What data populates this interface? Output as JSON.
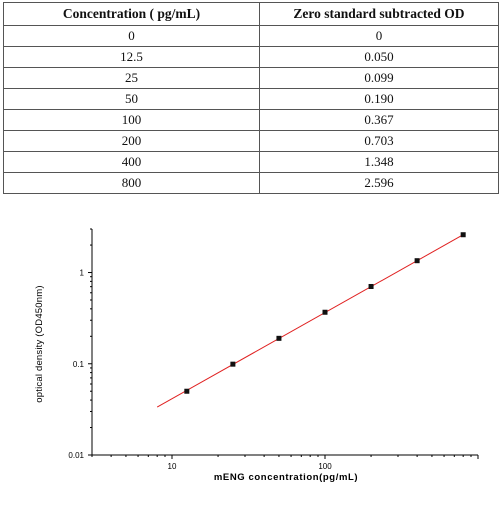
{
  "table": {
    "headers": [
      "Concentration ( pg/mL)",
      "Zero standard subtracted OD"
    ],
    "rows": [
      [
        "0",
        "0"
      ],
      [
        "12.5",
        "0.050"
      ],
      [
        "25",
        "0.099"
      ],
      [
        "50",
        "0.190"
      ],
      [
        "100",
        "0.367"
      ],
      [
        "200",
        "0.703"
      ],
      [
        "400",
        "1.348"
      ],
      [
        "800",
        "2.596"
      ]
    ]
  },
  "chart_data": {
    "type": "scatter",
    "title": "",
    "xlabel": "mENG  concentration(pg/mL)",
    "ylabel": "optical density (OD450nm)",
    "x_scale": "log",
    "y_scale": "log",
    "xlim": [
      3,
      1000
    ],
    "ylim": [
      0.01,
      3
    ],
    "x_ticks": [
      10,
      100
    ],
    "x_tick_labels": [
      "10",
      "100"
    ],
    "y_ticks": [
      0.01,
      0.1,
      1
    ],
    "y_tick_labels": [
      "0.01",
      "0.1",
      "1"
    ],
    "grid": false,
    "legend": "none",
    "series": [
      {
        "x": [
          12.5,
          25,
          50,
          100,
          200,
          400,
          800
        ],
        "y": [
          0.05,
          0.099,
          0.19,
          0.367,
          0.703,
          1.348,
          2.596
        ],
        "marker": "square",
        "color": "#111111"
      }
    ],
    "fit_line": {
      "type": "power",
      "x_range": [
        8,
        800
      ],
      "points": [
        [
          8,
          0.0335
        ],
        [
          800,
          2.596
        ]
      ],
      "color": "#e02020"
    }
  }
}
